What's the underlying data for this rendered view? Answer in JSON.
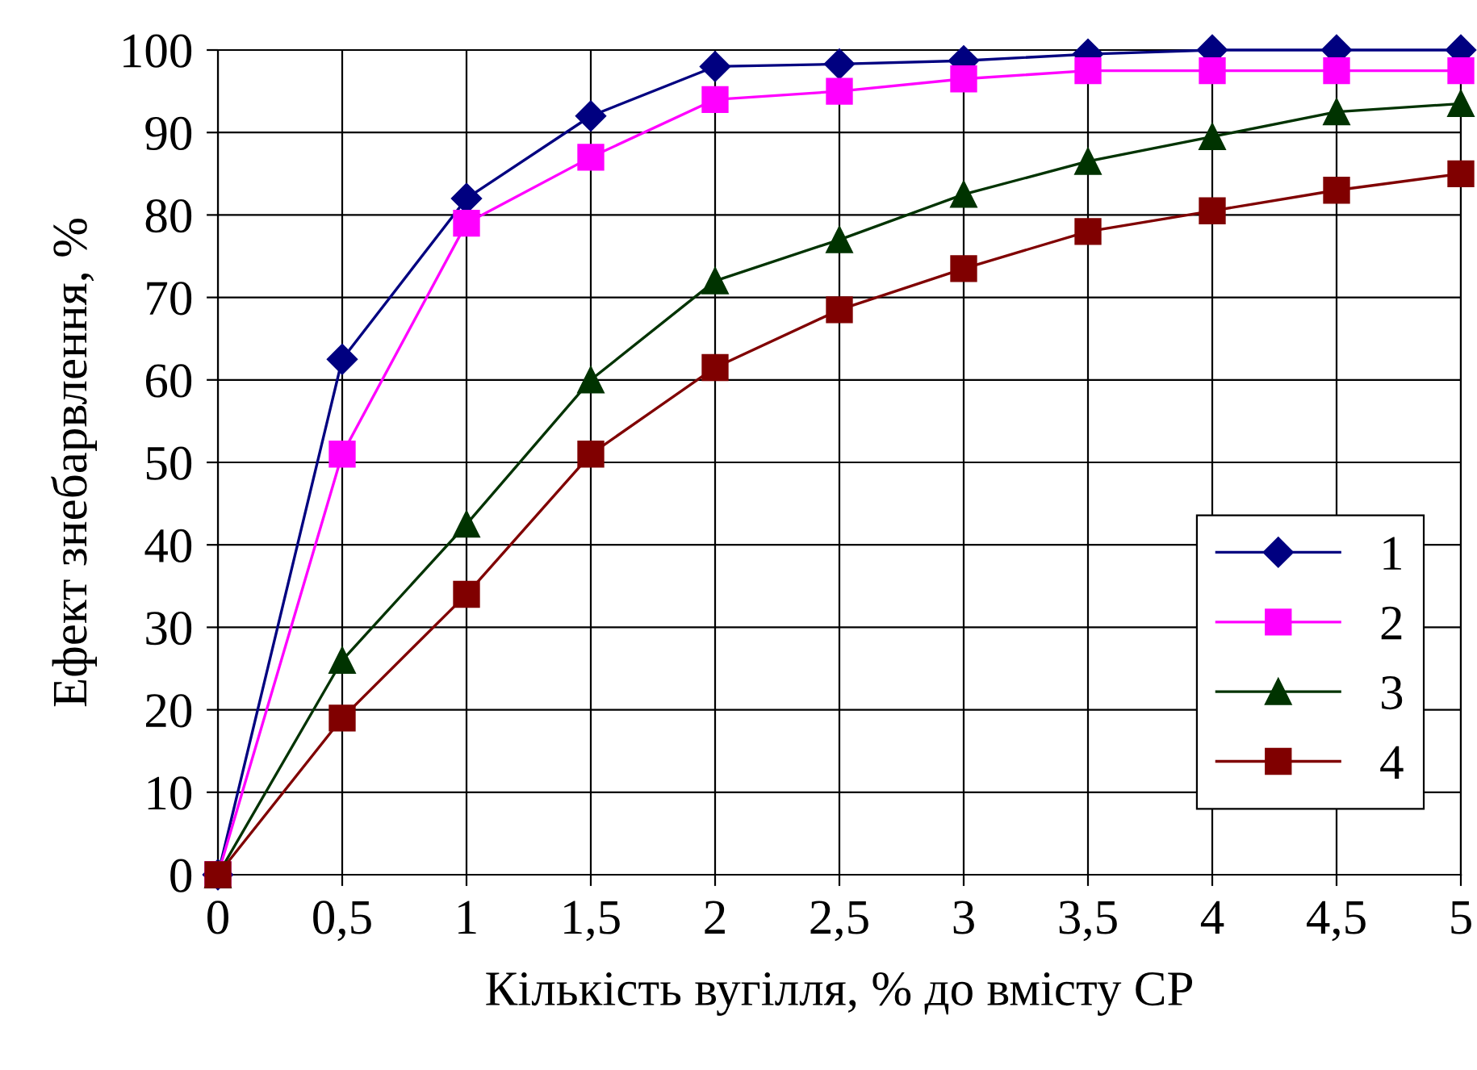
{
  "chart_data": {
    "type": "line",
    "xlabel": "Кількість вугілля, % до вмісту СР",
    "ylabel": "Ефект знебарвлення, %",
    "x": [
      0,
      0.5,
      1,
      1.5,
      2,
      2.5,
      3,
      3.5,
      4,
      4.5,
      5
    ],
    "series": [
      {
        "name": "1",
        "color": "#000080",
        "marker": "diamond",
        "values": [
          0,
          62.5,
          82,
          92,
          98,
          98.3,
          98.7,
          99.5,
          100,
          100,
          100
        ]
      },
      {
        "name": "2",
        "color": "#ff00ff",
        "marker": "square",
        "values": [
          0,
          51,
          79,
          87,
          94,
          95,
          96.5,
          97.5,
          97.5,
          97.5,
          97.5
        ]
      },
      {
        "name": "3",
        "color": "#003300",
        "marker": "triangle",
        "values": [
          0,
          26,
          42.5,
          60,
          72,
          77,
          82.5,
          86.5,
          89.5,
          92.5,
          93.5
        ]
      },
      {
        "name": "4",
        "color": "#800000",
        "marker": "square",
        "values": [
          0,
          19,
          34,
          51,
          61.5,
          68.5,
          73.5,
          78,
          80.5,
          83,
          85
        ]
      }
    ],
    "xlim": [
      0,
      5
    ],
    "ylim": [
      0,
      100
    ],
    "xticks": [
      0,
      {
        "value": 0.5,
        "label": "0,5"
      },
      1,
      {
        "value": 1.5,
        "label": "1,5"
      },
      2,
      {
        "value": 2.5,
        "label": "2,5"
      },
      3,
      {
        "value": 3.5,
        "label": "3,5"
      },
      4,
      {
        "value": 4.5,
        "label": "4,5"
      },
      5
    ],
    "yticks": [
      0,
      10,
      20,
      30,
      40,
      50,
      60,
      70,
      80,
      90,
      100
    ],
    "grid": true,
    "legend": "bottom right",
    "line_style": "solid"
  }
}
